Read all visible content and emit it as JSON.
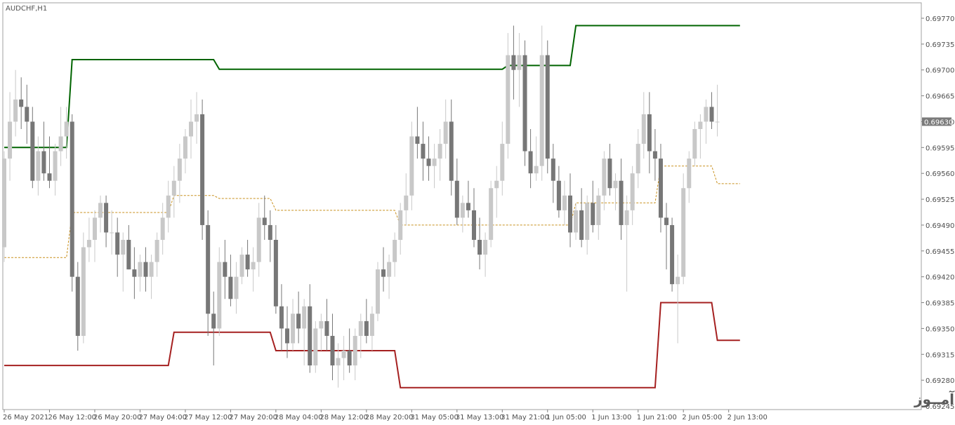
{
  "chart_data": {
    "type": "candlestick",
    "symbol_label": "AUDCHF,H1",
    "current_price": "0.69630",
    "watermark": "انتشار در وبسایت ســود آمــوز",
    "y_tick_labels": [
      "0.69770",
      "0.69735",
      "0.69700",
      "0.69665",
      "0.69630",
      "0.69595",
      "0.69560",
      "0.69525",
      "0.69490",
      "0.69455",
      "0.69420",
      "0.69385",
      "0.69350",
      "0.69315",
      "0.69280",
      "0.69245"
    ],
    "y_ticks": [
      0.6977,
      0.69735,
      0.697,
      0.69665,
      0.6963,
      0.69595,
      0.6956,
      0.69525,
      0.6949,
      0.69455,
      0.6942,
      0.69385,
      0.6935,
      0.69315,
      0.6928,
      0.69245
    ],
    "ylim": [
      0.69245,
      0.6978
    ],
    "x_tick_labels": [
      {
        "bar": 0,
        "label": "26 May 2021"
      },
      {
        "bar": 8,
        "label": "26 May 12:00"
      },
      {
        "bar": 16,
        "label": "26 May 20:00"
      },
      {
        "bar": 24,
        "label": "27 May 04:00"
      },
      {
        "bar": 32,
        "label": "27 May 12:00"
      },
      {
        "bar": 40,
        "label": "27 May 20:00"
      },
      {
        "bar": 48,
        "label": "28 May 04:00"
      },
      {
        "bar": 56,
        "label": "28 May 12:00"
      },
      {
        "bar": 64,
        "label": "28 May 20:00"
      },
      {
        "bar": 72,
        "label": "31 May 05:00"
      },
      {
        "bar": 80,
        "label": "31 May 13:00"
      },
      {
        "bar": 88,
        "label": "31 May 21:00"
      },
      {
        "bar": 96,
        "label": "1 Jun 05:00"
      },
      {
        "bar": 104,
        "label": "1 Jun 13:00"
      },
      {
        "bar": 112,
        "label": "1 Jun 21:00"
      },
      {
        "bar": 120,
        "label": "2 Jun 05:00"
      },
      {
        "bar": 128,
        "label": "2 Jun 13:00"
      }
    ],
    "ohlc": [
      [
        0.6946,
        0.6959,
        0.6944,
        0.6958
      ],
      [
        0.6958,
        0.6967,
        0.6955,
        0.6963
      ],
      [
        0.6963,
        0.697,
        0.6961,
        0.6966
      ],
      [
        0.6966,
        0.6969,
        0.6962,
        0.6965
      ],
      [
        0.6965,
        0.6968,
        0.696,
        0.6963
      ],
      [
        0.6963,
        0.6965,
        0.6954,
        0.6955
      ],
      [
        0.6955,
        0.6961,
        0.6953,
        0.6959
      ],
      [
        0.6959,
        0.6963,
        0.6955,
        0.6956
      ],
      [
        0.6956,
        0.6961,
        0.6954,
        0.6955
      ],
      [
        0.6955,
        0.696,
        0.6953,
        0.6959
      ],
      [
        0.6959,
        0.6965,
        0.6957,
        0.6961
      ],
      [
        0.6961,
        0.6965,
        0.6958,
        0.6963
      ],
      [
        0.6963,
        0.6964,
        0.694,
        0.6942
      ],
      [
        0.6942,
        0.6944,
        0.6932,
        0.6934
      ],
      [
        0.6934,
        0.6948,
        0.6933,
        0.6946
      ],
      [
        0.6946,
        0.695,
        0.6944,
        0.6947
      ],
      [
        0.6947,
        0.6951,
        0.6944,
        0.695
      ],
      [
        0.695,
        0.6953,
        0.6948,
        0.6952
      ],
      [
        0.6952,
        0.6953,
        0.6946,
        0.6948
      ],
      [
        0.6948,
        0.6951,
        0.6945,
        0.6948
      ],
      [
        0.6948,
        0.695,
        0.6942,
        0.6945
      ],
      [
        0.6945,
        0.6948,
        0.694,
        0.6947
      ],
      [
        0.6947,
        0.6949,
        0.6943,
        0.6943
      ],
      [
        0.6943,
        0.6946,
        0.6939,
        0.6942
      ],
      [
        0.6942,
        0.6945,
        0.694,
        0.6944
      ],
      [
        0.6944,
        0.6946,
        0.694,
        0.6942
      ],
      [
        0.6942,
        0.6945,
        0.6939,
        0.6944
      ],
      [
        0.6944,
        0.6948,
        0.6942,
        0.6947
      ],
      [
        0.6947,
        0.6952,
        0.6945,
        0.695
      ],
      [
        0.695,
        0.6955,
        0.6948,
        0.6953
      ],
      [
        0.6953,
        0.6957,
        0.695,
        0.6955
      ],
      [
        0.6955,
        0.696,
        0.6952,
        0.6958
      ],
      [
        0.6958,
        0.6962,
        0.6956,
        0.6961
      ],
      [
        0.6961,
        0.6966,
        0.6958,
        0.6963
      ],
      [
        0.6963,
        0.6967,
        0.696,
        0.6964
      ],
      [
        0.6964,
        0.6966,
        0.6947,
        0.6949
      ],
      [
        0.6949,
        0.6951,
        0.6934,
        0.6937
      ],
      [
        0.6937,
        0.694,
        0.693,
        0.6935
      ],
      [
        0.6935,
        0.6946,
        0.6934,
        0.6944
      ],
      [
        0.6944,
        0.6947,
        0.6939,
        0.6942
      ],
      [
        0.6942,
        0.6945,
        0.6938,
        0.6939
      ],
      [
        0.6939,
        0.6944,
        0.6937,
        0.6942
      ],
      [
        0.6942,
        0.6946,
        0.6941,
        0.6945
      ],
      [
        0.6945,
        0.6947,
        0.6942,
        0.6943
      ],
      [
        0.6943,
        0.6946,
        0.694,
        0.6944
      ],
      [
        0.6944,
        0.6952,
        0.6942,
        0.695
      ],
      [
        0.695,
        0.6953,
        0.6947,
        0.6949
      ],
      [
        0.6949,
        0.6951,
        0.6944,
        0.6947
      ],
      [
        0.6947,
        0.6949,
        0.6937,
        0.6938
      ],
      [
        0.6938,
        0.6941,
        0.6932,
        0.6935
      ],
      [
        0.6935,
        0.6938,
        0.6931,
        0.6933
      ],
      [
        0.6933,
        0.6939,
        0.6932,
        0.6937
      ],
      [
        0.6937,
        0.694,
        0.6933,
        0.6935
      ],
      [
        0.6935,
        0.6939,
        0.693,
        0.6938
      ],
      [
        0.6938,
        0.6941,
        0.6929,
        0.693
      ],
      [
        0.693,
        0.6936,
        0.6929,
        0.6935
      ],
      [
        0.6935,
        0.6937,
        0.6932,
        0.6936
      ],
      [
        0.6936,
        0.6939,
        0.6932,
        0.6934
      ],
      [
        0.6934,
        0.6937,
        0.6928,
        0.693
      ],
      [
        0.693,
        0.6933,
        0.6927,
        0.6931
      ],
      [
        0.6931,
        0.6934,
        0.6928,
        0.6932
      ],
      [
        0.6932,
        0.6935,
        0.6929,
        0.693
      ],
      [
        0.693,
        0.6935,
        0.6928,
        0.6934
      ],
      [
        0.6934,
        0.6937,
        0.6931,
        0.6936
      ],
      [
        0.6936,
        0.6939,
        0.6933,
        0.6934
      ],
      [
        0.6934,
        0.6938,
        0.6932,
        0.6937
      ],
      [
        0.6937,
        0.6944,
        0.6936,
        0.6943
      ],
      [
        0.6943,
        0.6946,
        0.694,
        0.6942
      ],
      [
        0.6942,
        0.6945,
        0.6939,
        0.6944
      ],
      [
        0.6944,
        0.6948,
        0.6942,
        0.6947
      ],
      [
        0.6947,
        0.6952,
        0.6945,
        0.6951
      ],
      [
        0.6951,
        0.6956,
        0.6949,
        0.6953
      ],
      [
        0.6953,
        0.6963,
        0.6951,
        0.6961
      ],
      [
        0.6961,
        0.6965,
        0.6958,
        0.696
      ],
      [
        0.696,
        0.6963,
        0.6955,
        0.6958
      ],
      [
        0.6958,
        0.6961,
        0.6955,
        0.6957
      ],
      [
        0.6957,
        0.696,
        0.6954,
        0.6958
      ],
      [
        0.6958,
        0.6962,
        0.6955,
        0.696
      ],
      [
        0.696,
        0.6966,
        0.6958,
        0.6963
      ],
      [
        0.6963,
        0.6966,
        0.6953,
        0.6955
      ],
      [
        0.6955,
        0.6958,
        0.6949,
        0.695
      ],
      [
        0.695,
        0.6953,
        0.6948,
        0.6952
      ],
      [
        0.6952,
        0.6955,
        0.695,
        0.6951
      ],
      [
        0.6951,
        0.6954,
        0.6946,
        0.6947
      ],
      [
        0.6947,
        0.695,
        0.6943,
        0.6945
      ],
      [
        0.6945,
        0.6948,
        0.6942,
        0.6947
      ],
      [
        0.6947,
        0.6955,
        0.6946,
        0.6954
      ],
      [
        0.6954,
        0.6957,
        0.695,
        0.6955
      ],
      [
        0.6955,
        0.6963,
        0.6953,
        0.696
      ],
      [
        0.696,
        0.6975,
        0.6958,
        0.6972
      ],
      [
        0.6972,
        0.6976,
        0.6966,
        0.697
      ],
      [
        0.697,
        0.6975,
        0.6965,
        0.6972
      ],
      [
        0.6972,
        0.6974,
        0.6957,
        0.6959
      ],
      [
        0.6959,
        0.6962,
        0.6954,
        0.6956
      ],
      [
        0.6956,
        0.6961,
        0.6955,
        0.6957
      ],
      [
        0.6957,
        0.6976,
        0.6955,
        0.6972
      ],
      [
        0.6972,
        0.6974,
        0.6956,
        0.6958
      ],
      [
        0.6958,
        0.696,
        0.6952,
        0.6955
      ],
      [
        0.6955,
        0.6957,
        0.695,
        0.6951
      ],
      [
        0.6951,
        0.6955,
        0.6949,
        0.6953
      ],
      [
        0.6953,
        0.6956,
        0.6946,
        0.6948
      ],
      [
        0.6948,
        0.6952,
        0.6947,
        0.6951
      ],
      [
        0.6951,
        0.6954,
        0.6946,
        0.6947
      ],
      [
        0.6947,
        0.6953,
        0.6945,
        0.6952
      ],
      [
        0.6952,
        0.6955,
        0.6948,
        0.6949
      ],
      [
        0.6949,
        0.6954,
        0.6947,
        0.6953
      ],
      [
        0.6953,
        0.6959,
        0.6951,
        0.6958
      ],
      [
        0.6958,
        0.696,
        0.6953,
        0.6954
      ],
      [
        0.6954,
        0.6956,
        0.6951,
        0.6955
      ],
      [
        0.6955,
        0.6958,
        0.6947,
        0.6949
      ],
      [
        0.6949,
        0.6953,
        0.694,
        0.6951
      ],
      [
        0.6951,
        0.6957,
        0.6949,
        0.6956
      ],
      [
        0.6956,
        0.6962,
        0.6954,
        0.696
      ],
      [
        0.696,
        0.6967,
        0.6958,
        0.6964
      ],
      [
        0.6964,
        0.6967,
        0.6956,
        0.6959
      ],
      [
        0.6959,
        0.6962,
        0.6955,
        0.6958
      ],
      [
        0.6958,
        0.696,
        0.6948,
        0.695
      ],
      [
        0.695,
        0.6952,
        0.6943,
        0.6949
      ],
      [
        0.6949,
        0.695,
        0.694,
        0.6941
      ],
      [
        0.6941,
        0.6945,
        0.6933,
        0.6942
      ],
      [
        0.6942,
        0.6956,
        0.6941,
        0.6954
      ],
      [
        0.6954,
        0.6959,
        0.6952,
        0.6958
      ],
      [
        0.6958,
        0.6963,
        0.6957,
        0.6962
      ],
      [
        0.6962,
        0.6964,
        0.6958,
        0.6963
      ],
      [
        0.6963,
        0.6966,
        0.696,
        0.6965
      ],
      [
        0.6965,
        0.6967,
        0.6962,
        0.6963
      ],
      [
        0.6963,
        0.6968,
        0.6961,
        0.6963
      ]
    ],
    "upper_channel": [
      [
        0,
        0.69595
      ],
      [
        11,
        0.69595
      ],
      [
        12,
        0.69714
      ],
      [
        37,
        0.69714
      ],
      [
        38,
        0.69701
      ],
      [
        88,
        0.69701
      ],
      [
        89,
        0.69706
      ],
      [
        100,
        0.69706
      ],
      [
        101,
        0.6976
      ],
      [
        130,
        0.6976
      ]
    ],
    "lower_channel": [
      [
        0,
        0.693
      ],
      [
        29,
        0.693
      ],
      [
        30,
        0.69345
      ],
      [
        47,
        0.69345
      ],
      [
        48,
        0.6932
      ],
      [
        69,
        0.6932
      ],
      [
        70,
        0.6927
      ],
      [
        115,
        0.6927
      ],
      [
        116,
        0.69385
      ],
      [
        125,
        0.69385
      ],
      [
        126,
        0.69334
      ],
      [
        130,
        0.69334
      ]
    ],
    "middle_channel": [
      [
        0,
        0.69446
      ],
      [
        11,
        0.69446
      ],
      [
        12,
        0.69507
      ],
      [
        29,
        0.69507
      ],
      [
        30,
        0.6953
      ],
      [
        37,
        0.6953
      ],
      [
        38,
        0.69526
      ],
      [
        47,
        0.69526
      ],
      [
        48,
        0.6951
      ],
      [
        69,
        0.6951
      ],
      [
        70,
        0.6949
      ],
      [
        100,
        0.6949
      ],
      [
        101,
        0.6952
      ],
      [
        115,
        0.6952
      ],
      [
        116,
        0.6957
      ],
      [
        125,
        0.6957
      ],
      [
        126,
        0.69546
      ],
      [
        130,
        0.69546
      ]
    ],
    "colors": {
      "bull": "#c8c8c8",
      "bear": "#777777",
      "upper_line": "#006400",
      "lower_line": "#a52020",
      "middle_line": "#c8901e",
      "grid_frame": "#a0a0a0",
      "current_price_bg": "#7a7a7a"
    }
  }
}
